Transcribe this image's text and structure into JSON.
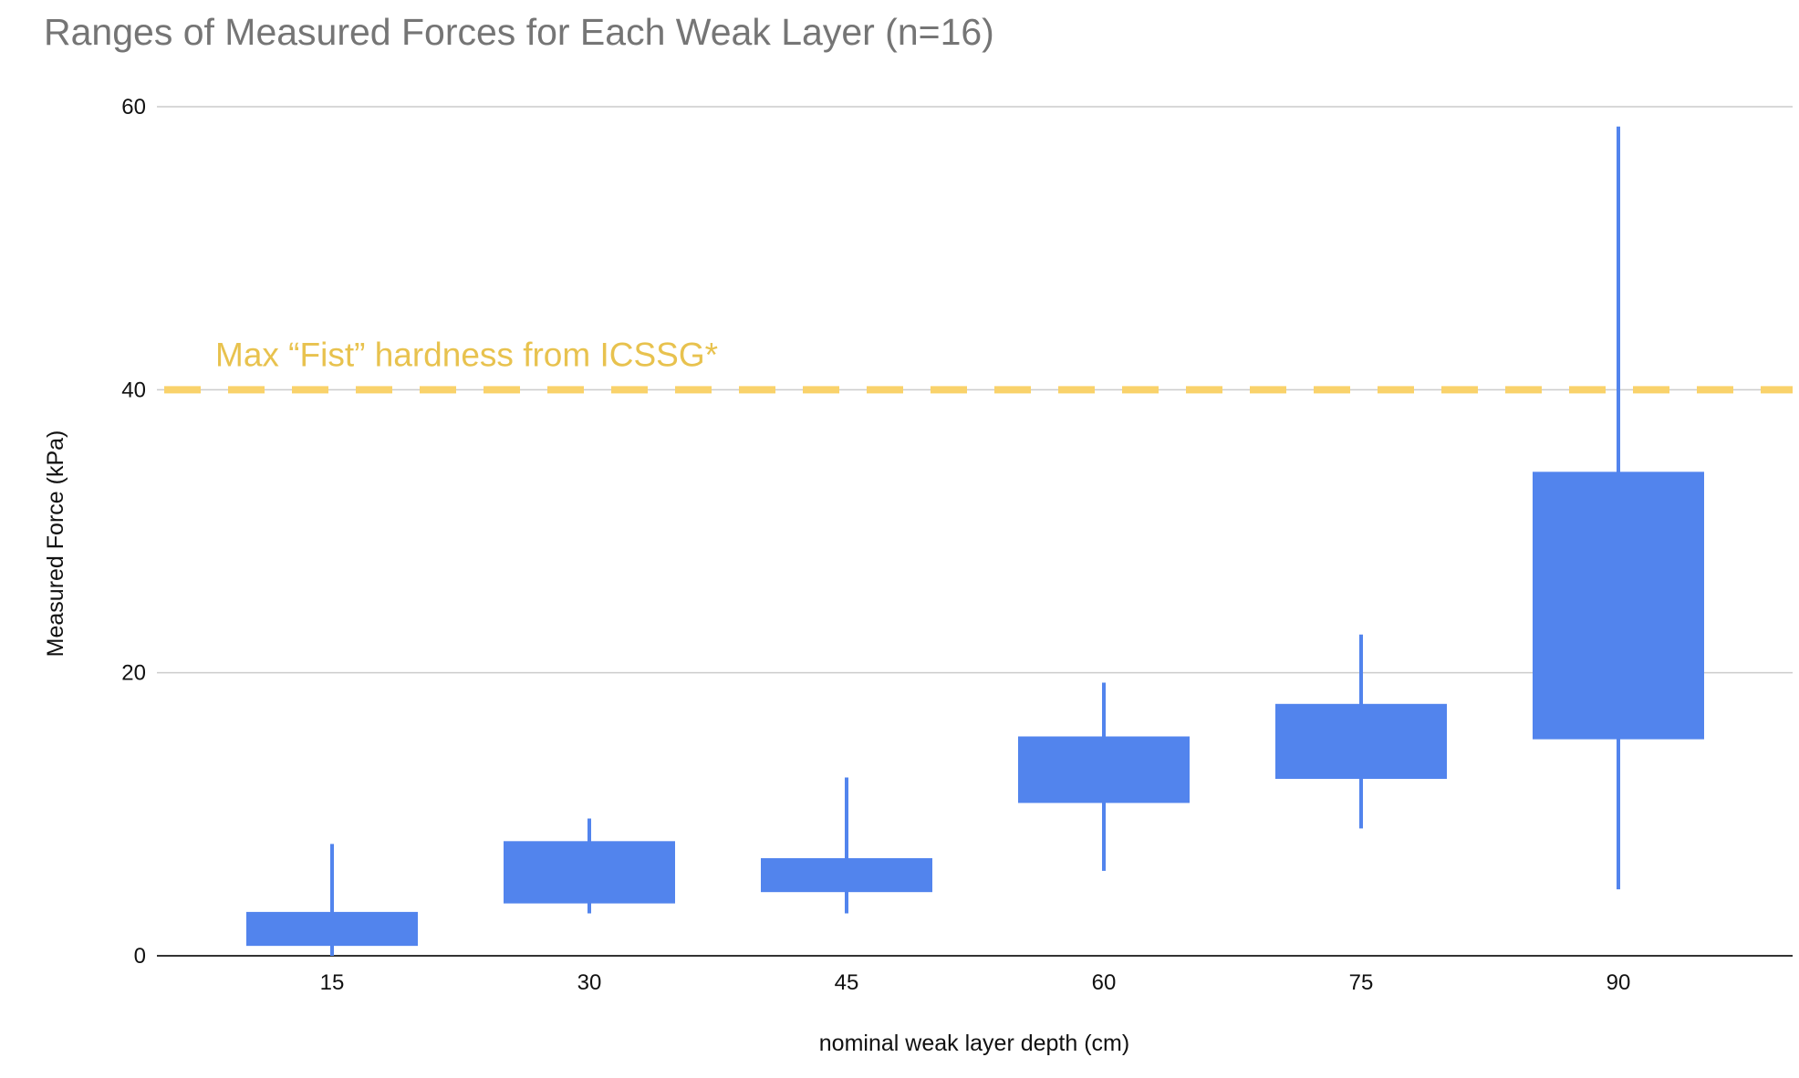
{
  "chart_data": {
    "type": "candlestick",
    "title": "Ranges of Measured Forces for Each Weak Layer (n=16)",
    "xlabel": "nominal weak layer depth (cm)",
    "ylabel": "Measured Force (kPa)",
    "ylim": [
      0,
      60
    ],
    "yticks": [
      0,
      20,
      40,
      60
    ],
    "grid": true,
    "categories": [
      "15",
      "30",
      "45",
      "60",
      "75",
      "90"
    ],
    "series": [
      {
        "color": "#5284ED",
        "low": [
          0,
          3,
          3,
          6,
          9,
          4.7
        ],
        "open": [
          0.7,
          3.7,
          4.5,
          10.8,
          12.5,
          15.3
        ],
        "close": [
          3.1,
          8.1,
          6.9,
          15.5,
          17.8,
          34.2
        ],
        "high": [
          7.9,
          9.7,
          12.6,
          19.3,
          22.7,
          58.6
        ]
      }
    ],
    "annotations": [
      {
        "type": "hline",
        "y": 40,
        "label": "Max “Fist” hardness from ICSSG*",
        "color": "#F9D26B",
        "text_color": "#E8C24E",
        "style": "dashed"
      }
    ]
  }
}
